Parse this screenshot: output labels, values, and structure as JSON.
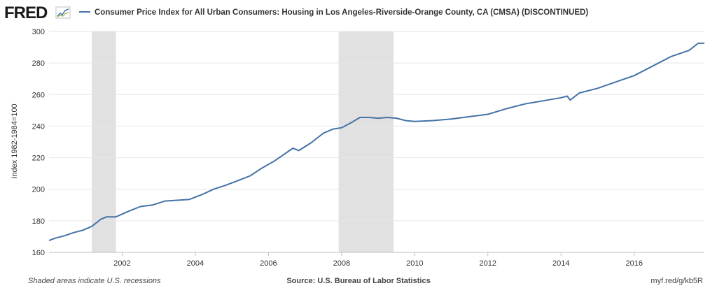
{
  "header": {
    "logo_text": "FRED",
    "logo_icon": "fred-chart-icon"
  },
  "chart_data": {
    "type": "line",
    "legend_position": "top-left",
    "grid": true,
    "ylabel": "Index 1982-1984=100",
    "xlim": [
      2000.0,
      2017.92
    ],
    "ylim": [
      160,
      300
    ],
    "y_ticks": [
      160,
      180,
      200,
      220,
      240,
      260,
      280,
      300
    ],
    "x_ticks": [
      2002,
      2004,
      2006,
      2008,
      2010,
      2012,
      2014,
      2016
    ],
    "recessions": [
      [
        2001.17,
        2001.83
      ],
      [
        2007.92,
        2009.42
      ]
    ],
    "series": [
      {
        "name": "Consumer Price Index for All Urban Consumers: Housing in Los Angeles-Riverside-Orange County, CA (CMSA) (DISCONTINUED)",
        "color": "#4572a7",
        "x": [
          2000.0,
          2000.17,
          2000.42,
          2000.67,
          2000.92,
          2001.17,
          2001.42,
          2001.58,
          2001.83,
          2002.17,
          2002.5,
          2002.83,
          2003.17,
          2003.5,
          2003.83,
          2004.17,
          2004.5,
          2004.83,
          2005.17,
          2005.5,
          2005.83,
          2006.17,
          2006.42,
          2006.67,
          2006.83,
          2007.17,
          2007.5,
          2007.75,
          2008.0,
          2008.25,
          2008.5,
          2008.75,
          2009.0,
          2009.25,
          2009.5,
          2009.75,
          2010.0,
          2010.5,
          2011.0,
          2011.5,
          2012.0,
          2012.5,
          2013.0,
          2013.5,
          2014.0,
          2014.17,
          2014.25,
          2014.5,
          2015.0,
          2015.5,
          2016.0,
          2016.5,
          2017.0,
          2017.5,
          2017.75,
          2017.92
        ],
        "y": [
          167.5,
          169.0,
          170.5,
          172.5,
          174.0,
          176.5,
          181.0,
          182.5,
          182.5,
          186.0,
          189.0,
          190.0,
          192.5,
          193.0,
          193.5,
          196.5,
          200.0,
          202.5,
          205.5,
          208.5,
          213.5,
          218.0,
          222.0,
          226.0,
          224.5,
          229.5,
          235.5,
          238.0,
          239.0,
          242.0,
          245.5,
          245.5,
          245.0,
          245.5,
          245.0,
          243.5,
          243.0,
          243.5,
          244.5,
          246.0,
          247.5,
          251.0,
          254.0,
          256.0,
          258.0,
          259.0,
          256.5,
          261.0,
          264.0,
          268.0,
          272.0,
          278.0,
          284.0,
          288.0,
          292.5,
          292.5
        ]
      }
    ]
  },
  "footer": {
    "recession_note": "Shaded areas indicate U.S. recessions",
    "source": "Source: U.S. Bureau of Labor Statistics",
    "short_url": "myf.red/g/kb5R"
  }
}
